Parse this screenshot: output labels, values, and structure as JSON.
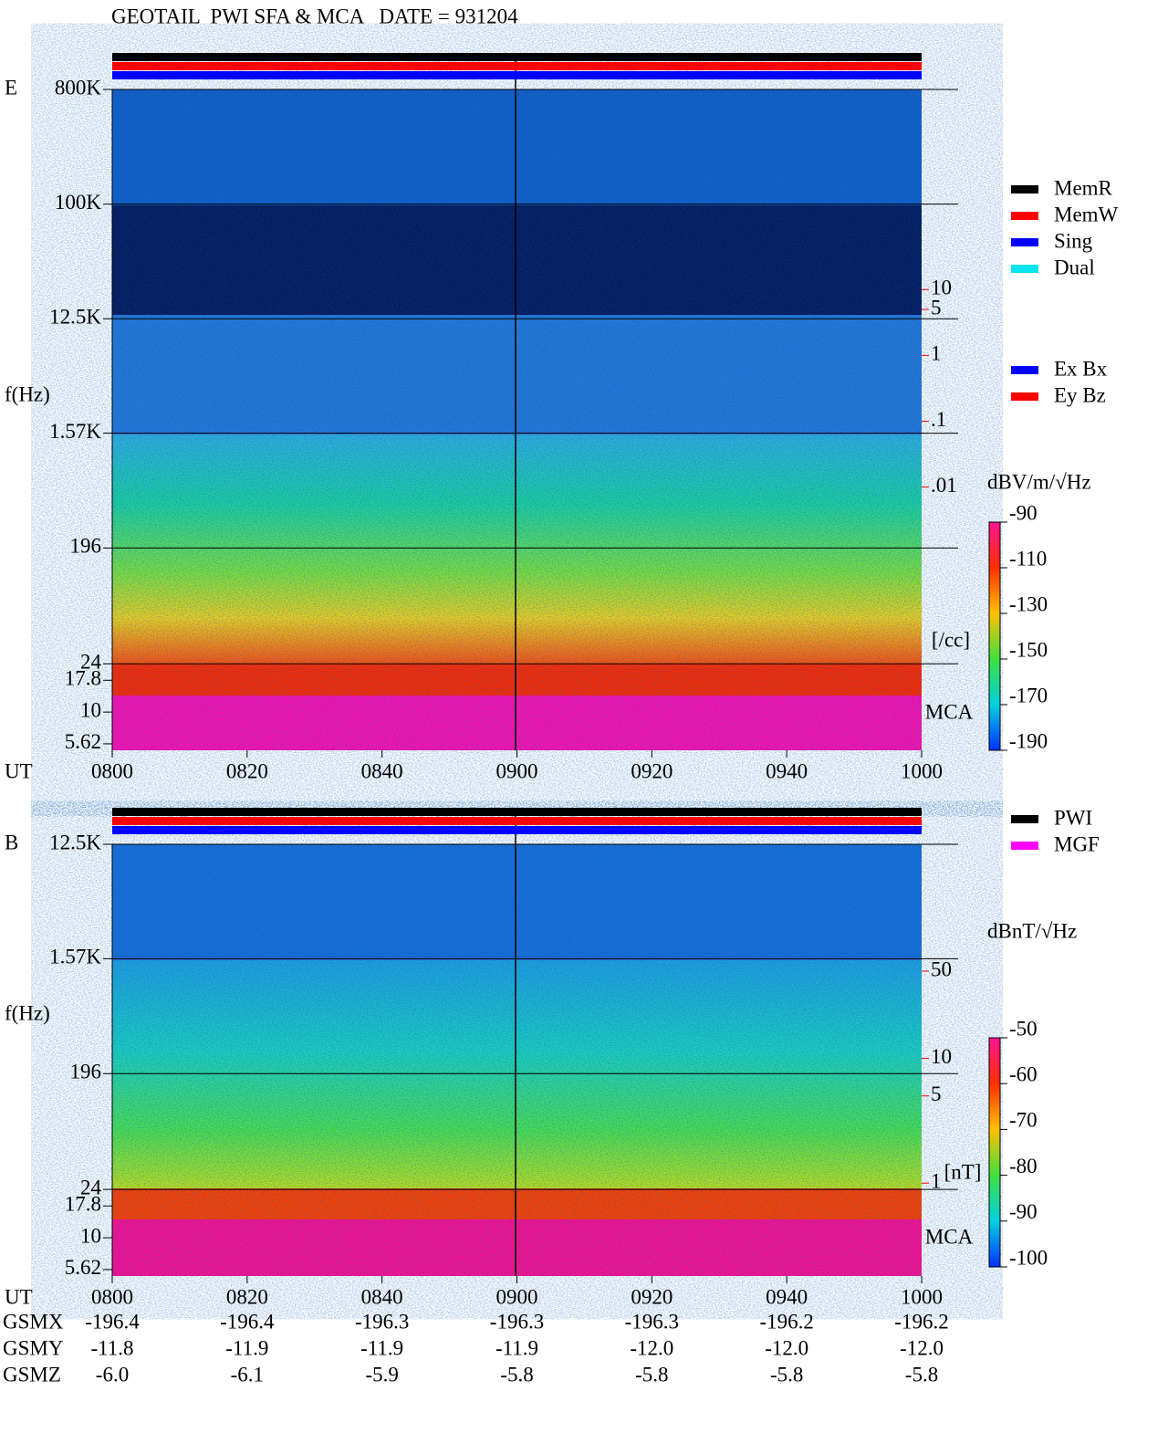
{
  "title": "GEOTAIL  PWI SFA & MCA   DATE = 931204",
  "chart_data": [
    {
      "type": "spectrogram",
      "panel_label": "E",
      "y_label": "f(Hz)",
      "x_label": "UT",
      "log_scale": true,
      "ylim": [
        5,
        800000
      ],
      "yticks": [
        {
          "value": 800000,
          "label": "800K"
        },
        {
          "value": 100000,
          "label": "100K"
        },
        {
          "value": 12500,
          "label": "12.5K"
        },
        {
          "value": 1570,
          "label": "1.57K"
        },
        196,
        24,
        17.8,
        10,
        5.62
      ],
      "xlim": [
        480,
        600
      ],
      "xticks": [
        {
          "value": 480,
          "label": "0800"
        },
        {
          "value": 500,
          "label": "0820"
        },
        {
          "value": 520,
          "label": "0840"
        },
        {
          "value": 540,
          "label": "0900"
        },
        {
          "value": 560,
          "label": "0920"
        },
        {
          "value": 580,
          "label": "0940"
        },
        {
          "value": 600,
          "label": "1000"
        }
      ],
      "y2_log_scale": true,
      "y2lim": [
        1e-06,
        11000
      ],
      "y2ticks": [
        10,
        5,
        1,
        {
          "value": 0.1,
          "label": ".1"
        },
        {
          "value": 0.01,
          "label": ".01"
        }
      ],
      "y2_unit": "[/cc]",
      "y2_color": "#ff0000",
      "channel_label": "MCA",
      "colorbar": {
        "label": "dBV/m/√Hz",
        "clim": [
          -190,
          -90
        ],
        "ticks": [
          -90,
          -110,
          -130,
          -150,
          -170,
          -190
        ]
      },
      "legend": [
        [
          {
            "name": "MemR",
            "color": "#000000"
          },
          {
            "name": "MemW",
            "color": "#ff0000"
          },
          {
            "name": "Sing",
            "color": "#0000ff"
          },
          {
            "name": "Dual",
            "color": "#00e5ee"
          }
        ],
        [
          {
            "name": "Ex Bx",
            "color": "#0000ff"
          },
          {
            "name": "Ey Bz",
            "color": "#ff0000"
          }
        ]
      ]
    },
    {
      "type": "spectrogram",
      "panel_label": "B",
      "y_label": "f(Hz)",
      "x_label": "UT",
      "log_scale": true,
      "ylim": [
        5,
        12500
      ],
      "yticks": [
        {
          "value": 12500,
          "label": "12.5K"
        },
        {
          "value": 1570,
          "label": "1.57K"
        },
        196,
        24,
        17.8,
        10,
        5.62
      ],
      "xlim": [
        480,
        600
      ],
      "xticks": [
        {
          "value": 480,
          "label": "0800"
        },
        {
          "value": 500,
          "label": "0820"
        },
        {
          "value": 520,
          "label": "0840"
        },
        {
          "value": 540,
          "label": "0900"
        },
        {
          "value": 560,
          "label": "0920"
        },
        {
          "value": 580,
          "label": "0940"
        },
        {
          "value": 600,
          "label": "1000"
        }
      ],
      "y2_log_scale": true,
      "y2lim": [
        0.18,
        520
      ],
      "y2ticks": [
        50,
        10,
        5,
        1
      ],
      "y2_unit": "[nT]",
      "y2_color": "#ff0000",
      "channel_label": "MCA",
      "colorbar": {
        "label": "dBnT/√Hz",
        "clim": [
          -100,
          -50
        ],
        "ticks": [
          -50,
          -60,
          -70,
          -80,
          -90,
          -100
        ]
      },
      "legend": [
        [
          {
            "name": "PWI",
            "color": "#000000"
          },
          {
            "name": "MGF",
            "color": "#ff00ff"
          }
        ]
      ]
    }
  ],
  "orbit": {
    "rows": [
      {
        "name": "GSMX",
        "values": [
          "-196.4",
          "-196.4",
          "-196.3",
          "-196.3",
          "-196.3",
          "-196.2",
          "-196.2"
        ]
      },
      {
        "name": "GSMY",
        "values": [
          "-11.8",
          "-11.9",
          "-11.9",
          "-11.9",
          "-12.0",
          "-12.0",
          "-12.0"
        ]
      },
      {
        "name": "GSMZ",
        "values": [
          "-6.0",
          "-6.1",
          "-5.9",
          "-5.8",
          "-5.8",
          "-5.8",
          "-5.8"
        ]
      }
    ]
  }
}
